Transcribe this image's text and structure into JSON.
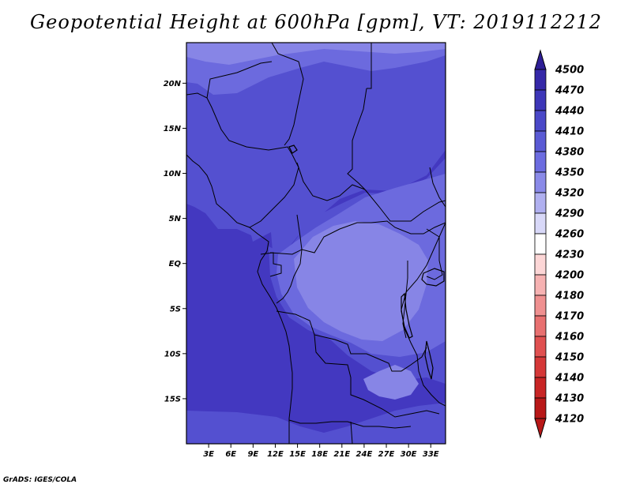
{
  "title": "Geopotential Height at 600hPa [gpm], VT: 2019112212",
  "footer": "GrADS: IGES/COLA",
  "map": {
    "lon_range": [
      0,
      35
    ],
    "lat_range": [
      -20,
      24.5
    ],
    "lon_ticks": [
      3,
      6,
      9,
      12,
      15,
      18,
      21,
      24,
      27,
      30,
      33
    ],
    "lon_labels": [
      "3E",
      "6E",
      "9E",
      "12E",
      "15E",
      "18E",
      "21E",
      "24E",
      "27E",
      "30E",
      "33E"
    ],
    "lat_ticks": [
      20,
      15,
      10,
      5,
      0,
      -5,
      -10,
      -15
    ],
    "lat_labels": [
      "20N",
      "15N",
      "10N",
      "5N",
      "EQ",
      "5S",
      "10S",
      "15S"
    ]
  },
  "colorbar": {
    "levels": [
      "4500",
      "4470",
      "4440",
      "4410",
      "4380",
      "4350",
      "4320",
      "4290",
      "4260",
      "4230",
      "4200",
      "4180",
      "4170",
      "4160",
      "4150",
      "4140",
      "4130",
      "4120"
    ],
    "colors": [
      "#2e1e96",
      "#3528a8",
      "#3d36b8",
      "#4a48c8",
      "#5a5ad4",
      "#6c6ce0",
      "#8a8ae8",
      "#b0b0f0",
      "#d8d8f8",
      "#ffffff",
      "#fcd6d6",
      "#f6b2b2",
      "#ef9090",
      "#e87070",
      "#e05050",
      "#d53838",
      "#c82525",
      "#b81818"
    ]
  },
  "field_colors": {
    "c4440": "#4338c0",
    "c4410": "#5450d0",
    "c4380": "#6c6ade",
    "c4350": "#8785e6"
  }
}
